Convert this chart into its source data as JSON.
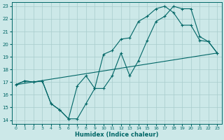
{
  "xlabel": "Humidex (Indice chaleur)",
  "bg_color": "#cce8e8",
  "grid_color": "#a8cccc",
  "line_color": "#006666",
  "xlim": [
    -0.5,
    23.5
  ],
  "ylim": [
    13.7,
    23.3
  ],
  "xticks": [
    0,
    1,
    2,
    3,
    4,
    5,
    6,
    7,
    8,
    9,
    10,
    11,
    12,
    13,
    14,
    15,
    16,
    17,
    18,
    19,
    20,
    21,
    22,
    23
  ],
  "yticks": [
    14,
    15,
    16,
    17,
    18,
    19,
    20,
    21,
    22,
    23
  ],
  "line1_x": [
    0,
    1,
    2,
    3,
    4,
    5,
    6,
    7,
    8,
    9,
    10,
    11,
    12,
    13,
    14,
    15,
    16,
    17,
    18,
    19,
    20,
    21,
    22,
    23
  ],
  "line1_y": [
    16.8,
    17.1,
    17.0,
    17.1,
    15.3,
    14.8,
    14.1,
    16.7,
    17.5,
    16.5,
    19.2,
    19.5,
    20.4,
    20.5,
    21.8,
    22.2,
    22.8,
    23.0,
    22.5,
    21.5,
    21.5,
    20.3,
    20.2,
    19.3
  ],
  "line2_x": [
    0,
    1,
    2,
    3,
    4,
    5,
    6,
    7,
    8,
    9,
    10,
    11,
    12,
    13,
    14,
    15,
    16,
    17,
    18,
    19,
    20,
    21,
    22,
    23
  ],
  "line2_y": [
    16.8,
    17.1,
    17.0,
    17.1,
    15.3,
    14.8,
    14.1,
    14.1,
    15.3,
    16.5,
    16.5,
    17.5,
    19.3,
    17.5,
    18.7,
    20.3,
    21.8,
    22.2,
    23.0,
    22.8,
    22.8,
    20.6,
    20.2,
    19.3
  ],
  "line3_x": [
    0,
    23
  ],
  "line3_y": [
    16.8,
    19.3
  ]
}
